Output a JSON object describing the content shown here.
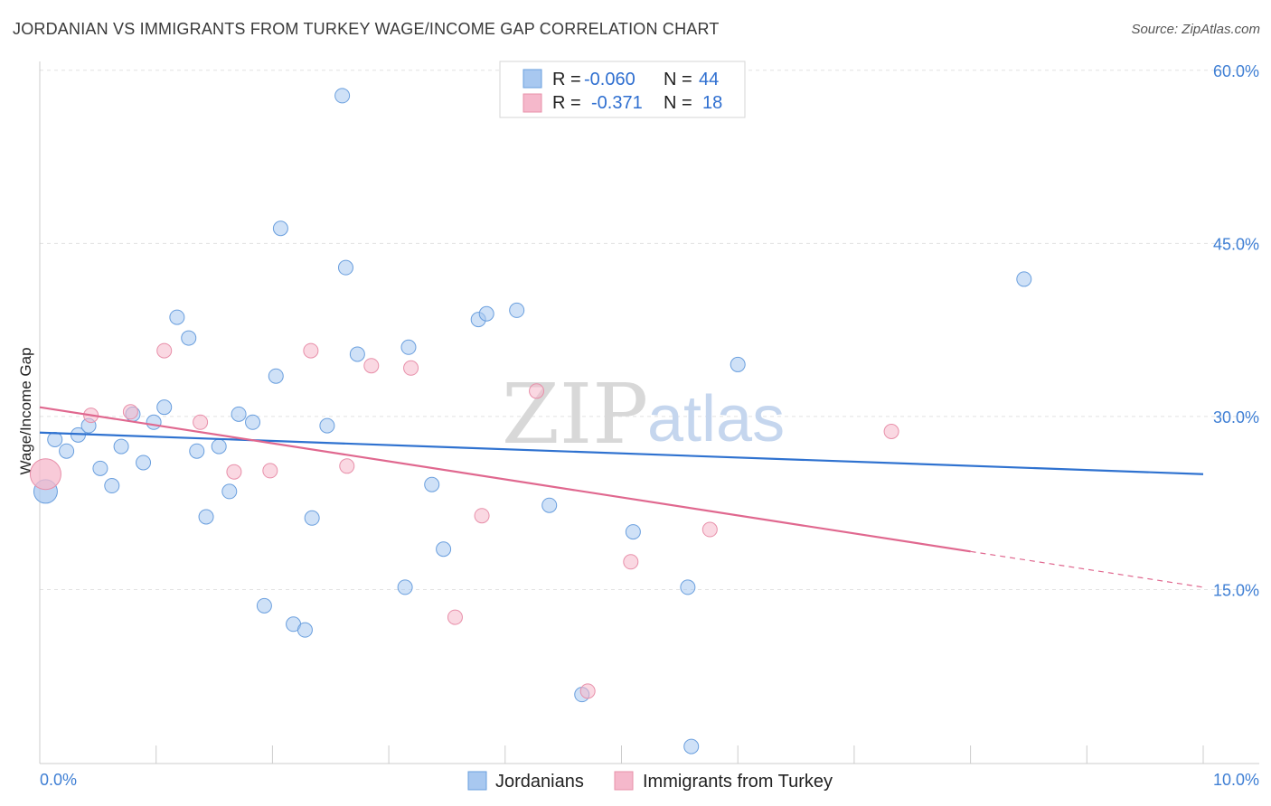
{
  "header": {
    "title": "JORDANIAN VS IMMIGRANTS FROM TURKEY WAGE/INCOME GAP CORRELATION CHART",
    "source": "Source: ZipAtlas.com"
  },
  "watermark": {
    "part1": "ZIP",
    "part2": "atlas"
  },
  "legend_box": {
    "rows": [
      {
        "r_label": "R =",
        "r_value": "-0.060",
        "n_label": "N =",
        "n_value": "44",
        "color": "#a8c8f0"
      },
      {
        "r_label": "R =",
        "r_value": "-0.371",
        "n_label": "N =",
        "n_value": "18",
        "color": "#f5b8cb"
      }
    ]
  },
  "bottom_legend": {
    "items": [
      {
        "label": "Jordanians",
        "color": "#a8c8f0"
      },
      {
        "label": "Immigrants from Turkey",
        "color": "#f5b8cb"
      }
    ]
  },
  "chart_data": {
    "type": "scatter",
    "title": "JORDANIAN VS IMMIGRANTS FROM TURKEY WAGE/INCOME GAP CORRELATION CHART",
    "xlabel": "",
    "ylabel": "Wage/Income Gap",
    "xlim": [
      0,
      10
    ],
    "ylim": [
      0,
      62
    ],
    "x_tick_labels": {
      "min": "0.0%",
      "max": "10.0%"
    },
    "y_ticks": [
      {
        "value": 60,
        "label": "60.0%"
      },
      {
        "value": 45,
        "label": "45.0%"
      },
      {
        "value": 30,
        "label": "30.0%"
      },
      {
        "value": 15,
        "label": "15.0%"
      }
    ],
    "grid": true,
    "series": [
      {
        "name": "Jordanians",
        "color": "#a8c8f0",
        "stroke": "#6a9fde",
        "trend": {
          "x0": 0,
          "y0": 28.6,
          "x1": 10,
          "y1": 25.0,
          "color": "#2f72d0"
        },
        "points": [
          [
            0.05,
            23.5
          ],
          [
            0.13,
            28.0
          ],
          [
            0.23,
            27.0
          ],
          [
            0.33,
            28.4
          ],
          [
            0.42,
            29.2
          ],
          [
            0.52,
            25.5
          ],
          [
            0.62,
            24.0
          ],
          [
            0.7,
            27.4
          ],
          [
            0.8,
            30.2
          ],
          [
            0.89,
            26.0
          ],
          [
            0.98,
            29.5
          ],
          [
            1.07,
            30.8
          ],
          [
            1.18,
            38.6
          ],
          [
            1.28,
            36.8
          ],
          [
            1.35,
            27.0
          ],
          [
            1.43,
            21.3
          ],
          [
            1.54,
            27.4
          ],
          [
            1.63,
            23.5
          ],
          [
            1.71,
            30.2
          ],
          [
            1.83,
            29.5
          ],
          [
            1.93,
            13.6
          ],
          [
            2.03,
            33.5
          ],
          [
            2.07,
            46.3
          ],
          [
            2.18,
            12.0
          ],
          [
            2.28,
            11.5
          ],
          [
            2.34,
            21.2
          ],
          [
            2.47,
            29.2
          ],
          [
            2.6,
            57.8
          ],
          [
            2.63,
            42.9
          ],
          [
            2.73,
            35.4
          ],
          [
            3.14,
            15.2
          ],
          [
            3.17,
            36.0
          ],
          [
            3.37,
            24.1
          ],
          [
            3.47,
            18.5
          ],
          [
            3.77,
            38.4
          ],
          [
            3.84,
            38.9
          ],
          [
            4.1,
            39.2
          ],
          [
            4.38,
            22.3
          ],
          [
            4.66,
            5.9
          ],
          [
            5.1,
            20.0
          ],
          [
            5.57,
            15.2
          ],
          [
            5.6,
            1.4
          ],
          [
            6.0,
            34.5
          ],
          [
            8.46,
            41.9
          ]
        ]
      },
      {
        "name": "Immigrants from Turkey",
        "color": "#f5b8cb",
        "stroke": "#e890aa",
        "trend": {
          "x0": 0,
          "y0": 30.8,
          "x1": 8.0,
          "y1": 18.3,
          "dash_to_x": 10,
          "dash_to_y": 15.2,
          "color": "#e0688f"
        },
        "points": [
          [
            0.05,
            25.0
          ],
          [
            0.44,
            30.1
          ],
          [
            0.78,
            30.4
          ],
          [
            1.07,
            35.7
          ],
          [
            1.38,
            29.5
          ],
          [
            1.67,
            25.2
          ],
          [
            1.98,
            25.3
          ],
          [
            2.33,
            35.7
          ],
          [
            2.64,
            25.7
          ],
          [
            2.85,
            34.4
          ],
          [
            3.19,
            34.2
          ],
          [
            3.57,
            12.6
          ],
          [
            3.8,
            21.4
          ],
          [
            4.27,
            32.2
          ],
          [
            4.71,
            6.2
          ],
          [
            5.08,
            17.4
          ],
          [
            5.76,
            20.2
          ],
          [
            7.32,
            28.7
          ]
        ]
      }
    ]
  }
}
